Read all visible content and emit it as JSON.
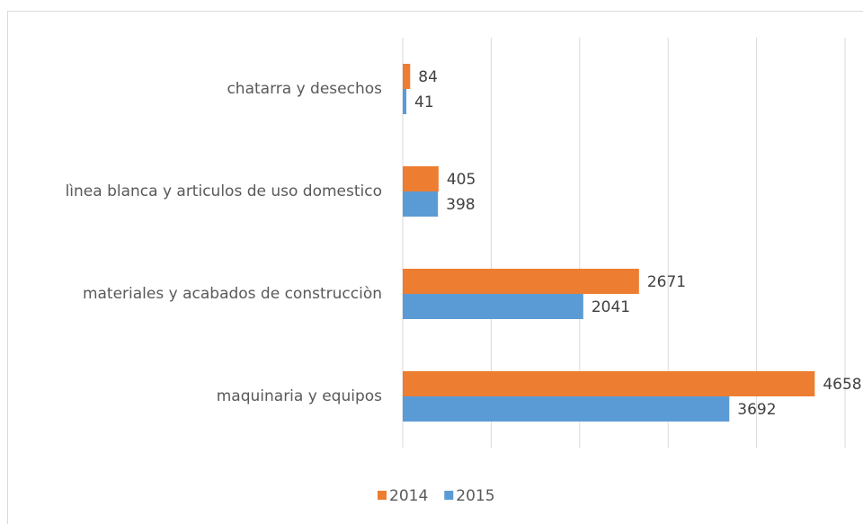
{
  "chart_data": {
    "type": "bar",
    "orientation": "horizontal",
    "categories": [
      "chatarra y desechos",
      "lìnea blanca y articulos de uso domestico",
      "materiales y acabados de construcciòn",
      "maquinaria y equipos"
    ],
    "series": [
      {
        "name": "2014",
        "color": "#ed7d31",
        "values": [
          84,
          405,
          2671,
          4658
        ]
      },
      {
        "name": "2015",
        "color": "#5b9bd5",
        "values": [
          41,
          398,
          2041,
          3692
        ]
      }
    ],
    "xlim": [
      0,
      5000
    ],
    "xticks": [
      0,
      1000,
      2000,
      3000,
      4000,
      5000
    ],
    "grid": true,
    "legend": "bottom"
  }
}
